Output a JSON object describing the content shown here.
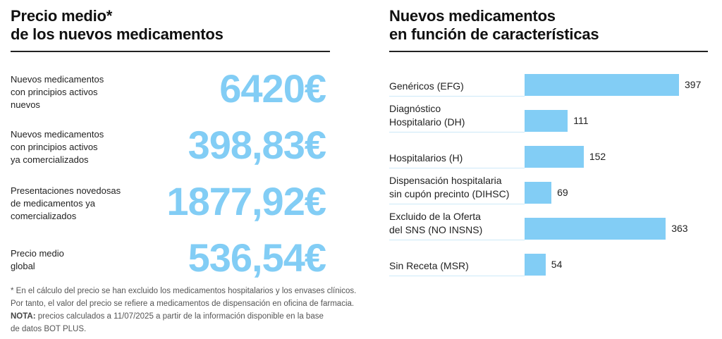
{
  "left_panel": {
    "title_line1": "Precio medio*",
    "title_line2": "de los nuevos medicamentos",
    "stats": [
      {
        "label_lines": [
          "Nuevos medicamentos",
          "con principios activos",
          "nuevos"
        ],
        "value": "6420€"
      },
      {
        "label_lines": [
          "Nuevos medicamentos",
          "con principios activos",
          "ya comercializados"
        ],
        "value": "398,83€"
      },
      {
        "label_lines": [
          "Presentaciones novedosas",
          "de medicamentos ya",
          "comercializados"
        ],
        "value": "1877,92€"
      },
      {
        "label_lines": [
          "Precio medio",
          "global"
        ],
        "value": "536,54€"
      }
    ],
    "notes": {
      "line1": "* En el cálculo del precio se han excluido los medicamentos hospitalarios y los envases clínicos.",
      "line2": "Por tanto, el valor del precio se refiere a medicamentos de dispensación en oficina de farmacia.",
      "nota_label": "NOTA:",
      "line3": " precios calculados a 11/07/2025 a partir de la información disponible en la base",
      "line4": "de datos BOT PLUS."
    }
  },
  "colors": {
    "accent": "#82cdf5",
    "rule": "#222222",
    "row_line": "#cde9f8"
  },
  "chart_data": {
    "type": "bar",
    "orientation": "horizontal",
    "title": "Nuevos medicamentos en función de características",
    "title_line1": "Nuevos medicamentos",
    "title_line2": "en función de características",
    "xlabel": "",
    "ylabel": "",
    "grid": false,
    "categories": [
      [
        "Genéricos (EFG)"
      ],
      [
        "Diagnóstico",
        "Hospitalario (DH)"
      ],
      [
        "Hospitalarios (H)"
      ],
      [
        "Dispensación hospitalaria",
        "sin cupón precinto (DIHSC)"
      ],
      [
        "Excluido de la Oferta",
        "del SNS (NO INSNS)"
      ],
      [
        "Sin Receta (MSR)"
      ]
    ],
    "values": [
      397,
      111,
      152,
      69,
      363,
      54
    ],
    "value_labels": [
      "397",
      "111",
      "152",
      "69",
      "363",
      "54"
    ],
    "xlim": [
      0,
      397
    ]
  }
}
